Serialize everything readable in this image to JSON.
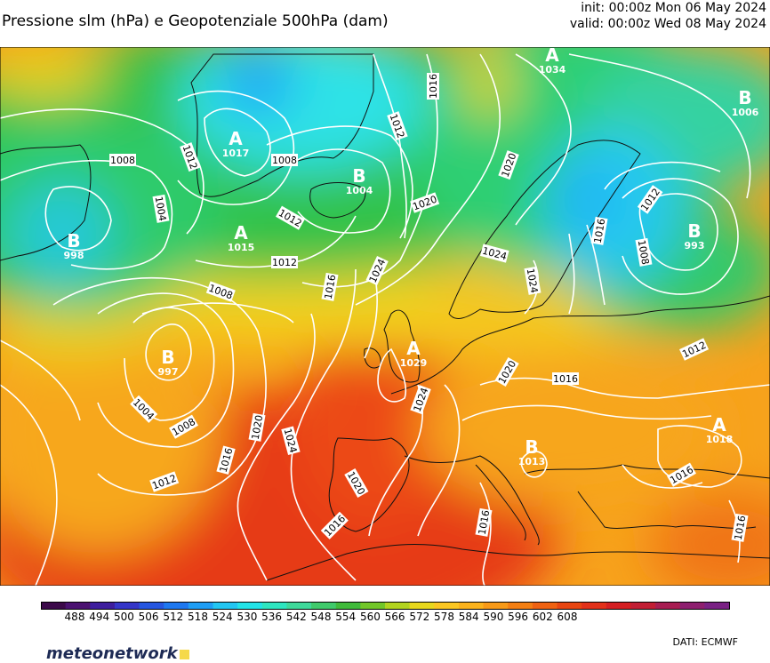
{
  "header": {
    "title": "Pressione slm (hPa) e Geopotenziale 500hPa (dam)",
    "init": "init: 00:00z Mon 06 May 2024",
    "valid": "valid: 00:00z Wed 08 May 2024"
  },
  "pressure_centers": [
    {
      "type": "A",
      "value": "1017"
    },
    {
      "type": "B",
      "value": "1004"
    },
    {
      "type": "A",
      "value": "1034"
    },
    {
      "type": "B",
      "value": "1006"
    },
    {
      "type": "B",
      "value": "993"
    },
    {
      "type": "A",
      "value": "1015"
    },
    {
      "type": "B",
      "value": "997"
    },
    {
      "type": "A",
      "value": "1029"
    },
    {
      "type": "B",
      "value": "1013"
    },
    {
      "type": "A",
      "value": "1018"
    },
    {
      "type": "B",
      "value": "998"
    }
  ],
  "isobar_labels": [
    "1008",
    "1012",
    "1008",
    "1004",
    "1016",
    "1012",
    "1020",
    "1020",
    "1012",
    "1012",
    "1008",
    "1016",
    "1016",
    "1024",
    "1024",
    "1024",
    "1012",
    "1008",
    "1024",
    "1020",
    "1016",
    "1012",
    "1004",
    "1008",
    "1016",
    "1012",
    "1020",
    "1024",
    "1020",
    "1016",
    "1016",
    "1016",
    "1016"
  ],
  "colorbar": {
    "levels": [
      "488",
      "494",
      "500",
      "506",
      "512",
      "518",
      "524",
      "530",
      "536",
      "542",
      "548",
      "554",
      "560",
      "566",
      "572",
      "578",
      "584",
      "590",
      "596",
      "602",
      "608"
    ],
    "colors": [
      "#3c0a4a",
      "#4b1271",
      "#3e1e9e",
      "#3536c8",
      "#2656e0",
      "#1e78f0",
      "#1f9ef5",
      "#22c6f2",
      "#22e4e8",
      "#2ee6c0",
      "#3ed99a",
      "#3fca6b",
      "#3fba3a",
      "#72c729",
      "#b2d41f",
      "#e8d81d",
      "#fbc722",
      "#fbb31d",
      "#f89a18",
      "#f47f13",
      "#ef6212",
      "#e84612",
      "#e2311a",
      "#d51f22",
      "#c21e34",
      "#a81d52",
      "#8e1f6f",
      "#7a2184"
    ]
  },
  "footer": {
    "logo_text": "meteonetwork",
    "credits": "DATI:  ECMWF"
  }
}
